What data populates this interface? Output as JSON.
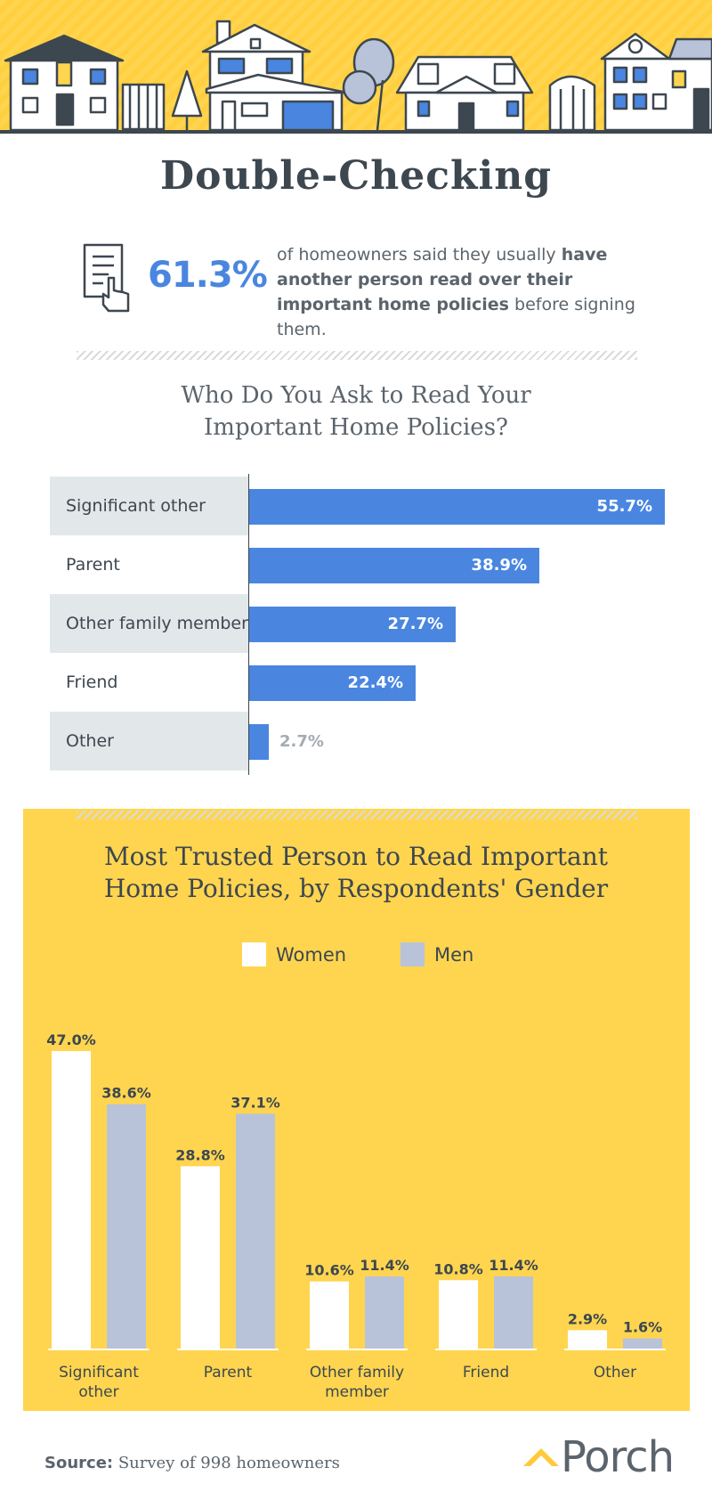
{
  "title": "Double-Checking",
  "stat": {
    "value": "61.3%",
    "text_pre": "of homeowners said they usually ",
    "text_bold": "have another person read over their important home policies",
    "text_post": " before signing them."
  },
  "chart_data": [
    {
      "type": "bar",
      "orientation": "horizontal",
      "title_line1": "Who Do You Ask to Read Your",
      "title_line2": "Important Home Policies?",
      "categories": [
        "Significant other",
        "Parent",
        "Other family member",
        "Friend",
        "Other"
      ],
      "values": [
        55.7,
        38.9,
        27.7,
        22.4,
        2.7
      ],
      "value_labels": [
        "55.7%",
        "38.9%",
        "27.7%",
        "22.4%",
        "2.7%"
      ],
      "xlim": [
        0,
        55.7
      ],
      "color": "#4a86e0"
    },
    {
      "type": "bar",
      "orientation": "vertical",
      "title_line1": "Most Trusted Person to Read Important",
      "title_line2": "Home Policies, by Respondents' Gender",
      "categories": [
        [
          "Significant",
          "other"
        ],
        [
          "Parent"
        ],
        [
          "Other family",
          "member"
        ],
        [
          "Friend"
        ],
        [
          "Other"
        ]
      ],
      "series": [
        {
          "name": "Women",
          "values": [
            47.0,
            28.8,
            10.6,
            10.8,
            2.9
          ],
          "labels": [
            "47.0%",
            "28.8%",
            "10.6%",
            "10.8%",
            "2.9%"
          ],
          "color": "#ffffff"
        },
        {
          "name": "Men",
          "values": [
            38.6,
            37.1,
            11.4,
            11.4,
            1.6
          ],
          "labels": [
            "38.6%",
            "37.1%",
            "11.4%",
            "11.4%",
            "1.6%"
          ],
          "color": "#b8c3d9"
        }
      ],
      "ylim": [
        0,
        47.0
      ],
      "legend": "top-center"
    }
  ],
  "source": {
    "label": "Source:",
    "text": " Survey of 998 homeowners"
  },
  "brand": "Porch",
  "colors": {
    "accent": "#4a86e0",
    "banner": "#ffd54f",
    "text": "#3d4750",
    "label_bg": "#e2e8e9"
  }
}
